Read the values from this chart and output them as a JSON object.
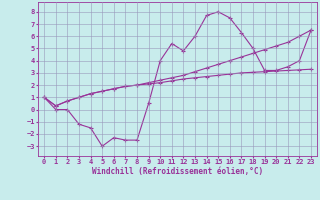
{
  "x": [
    0,
    1,
    2,
    3,
    4,
    5,
    6,
    7,
    8,
    9,
    10,
    11,
    12,
    13,
    14,
    15,
    16,
    17,
    18,
    19,
    20,
    21,
    22,
    23
  ],
  "y_curve": [
    1,
    0,
    0,
    -1.2,
    -1.5,
    -3,
    -2.3,
    -2.5,
    -2.5,
    0.5,
    4,
    5.4,
    4.8,
    6,
    7.7,
    8,
    7.5,
    6.3,
    5,
    3.2,
    3.2,
    3.5,
    4,
    6.5
  ],
  "y_line_low": [
    1,
    0.3,
    0.7,
    1.0,
    1.3,
    1.5,
    1.7,
    1.9,
    2.0,
    2.1,
    2.2,
    2.35,
    2.5,
    2.6,
    2.7,
    2.8,
    2.9,
    3.0,
    3.05,
    3.1,
    3.15,
    3.2,
    3.25,
    3.3
  ],
  "y_line_high": [
    1,
    0.3,
    0.7,
    1.0,
    1.3,
    1.5,
    1.7,
    1.9,
    2.0,
    2.2,
    2.4,
    2.6,
    2.8,
    3.1,
    3.4,
    3.7,
    4.0,
    4.3,
    4.6,
    4.9,
    5.2,
    5.5,
    6.0,
    6.5
  ],
  "color": "#993399",
  "bg_color": "#c8ecec",
  "grid_color": "#9999bb",
  "xlabel": "Windchill (Refroidissement éolien,°C)",
  "ylim": [
    -3.8,
    8.8
  ],
  "xlim": [
    -0.5,
    23.5
  ],
  "yticks": [
    -3,
    -2,
    -1,
    0,
    1,
    2,
    3,
    4,
    5,
    6,
    7,
    8
  ],
  "xticks": [
    0,
    1,
    2,
    3,
    4,
    5,
    6,
    7,
    8,
    9,
    10,
    11,
    12,
    13,
    14,
    15,
    16,
    17,
    18,
    19,
    20,
    21,
    22,
    23
  ],
  "tick_fontsize": 5.0,
  "xlabel_fontsize": 5.5,
  "linewidth": 0.8,
  "markersize": 3.0
}
